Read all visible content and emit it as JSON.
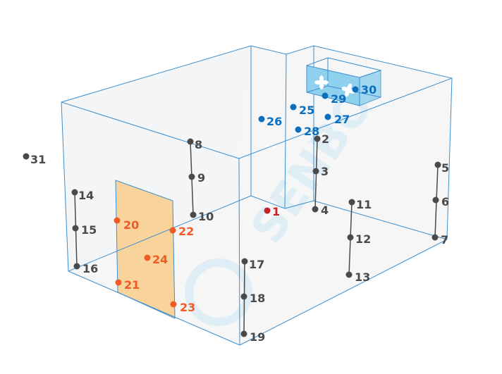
{
  "colors": {
    "edge": "#3a8fd0",
    "wall": "#f6f6f7",
    "door": "#f9d39c",
    "ac_unit": "#8fd0ee",
    "sensor_gray": "#4a4a4a",
    "sensor_orange": "#f05a24",
    "sensor_blue": "#0b6fbd",
    "sensor_red": "#c8202a"
  },
  "watermark": "SENBO",
  "ac_unit": {
    "icons": [
      "fan-icon",
      "fan-icon"
    ]
  },
  "points": {
    "p1": "1",
    "p2": "2",
    "p3": "3",
    "p4": "4",
    "p5": "5",
    "p6": "6",
    "p7": "7",
    "p8": "8",
    "p9": "9",
    "p10": "10",
    "p11": "11",
    "p12": "12",
    "p13": "13",
    "p14": "14",
    "p15": "15",
    "p16": "16",
    "p17": "17",
    "p18": "18",
    "p19": "19",
    "p20": "20",
    "p21": "21",
    "p22": "22",
    "p23": "23",
    "p24": "24",
    "p25": "25",
    "p26": "26",
    "p27": "27",
    "p28": "28",
    "p29": "29",
    "p30": "30",
    "p31": "31"
  }
}
